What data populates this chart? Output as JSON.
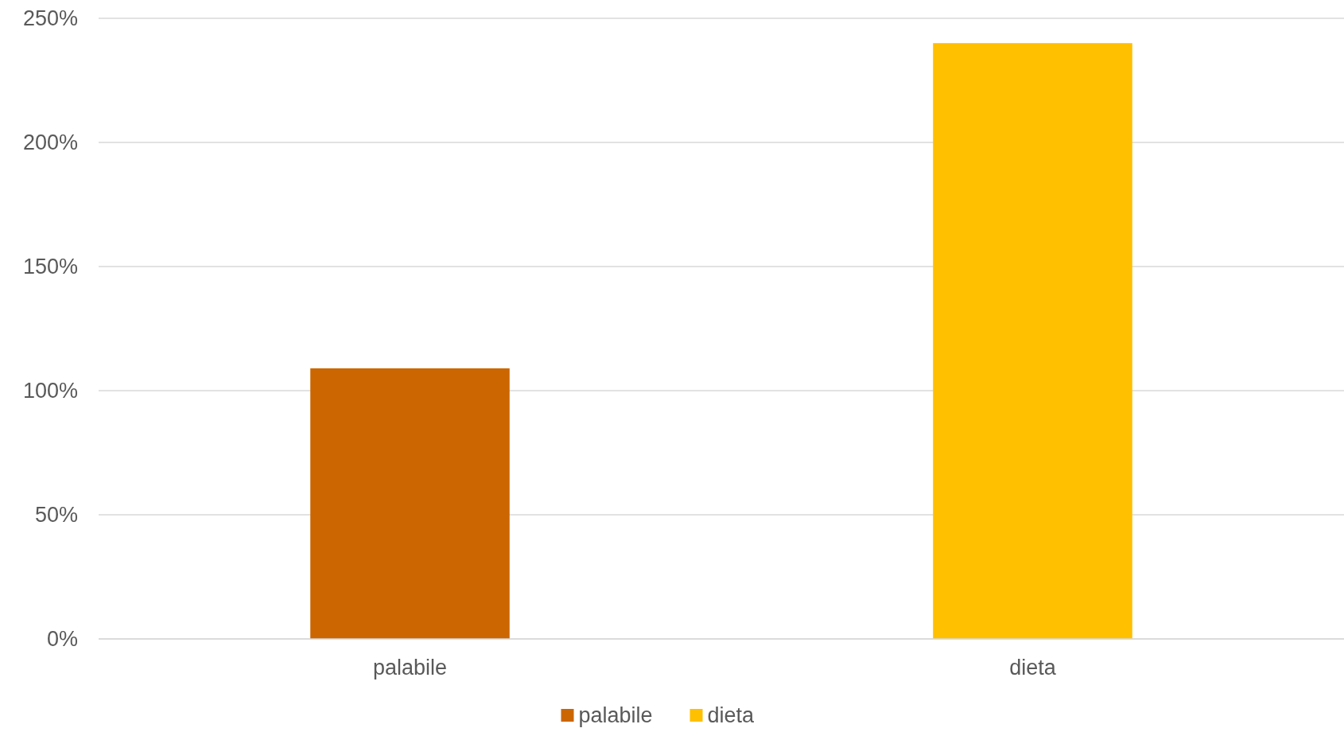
{
  "chart_data": {
    "type": "bar",
    "categories": [
      "palabile",
      "dieta"
    ],
    "series": [
      {
        "name": "palabile",
        "color": "#cc6600",
        "values": [
          109,
          null
        ]
      },
      {
        "name": "dieta",
        "color": "#ffc000",
        "values": [
          null,
          240
        ]
      }
    ],
    "ylim": [
      0,
      250
    ],
    "yticks": [
      {
        "value": 0,
        "label": "0%"
      },
      {
        "value": 50,
        "label": "50%"
      },
      {
        "value": 100,
        "label": "100%"
      },
      {
        "value": 150,
        "label": "150%"
      },
      {
        "value": 200,
        "label": "200%"
      },
      {
        "value": 250,
        "label": "250%"
      }
    ],
    "grid": "y",
    "legend": "bottom"
  }
}
